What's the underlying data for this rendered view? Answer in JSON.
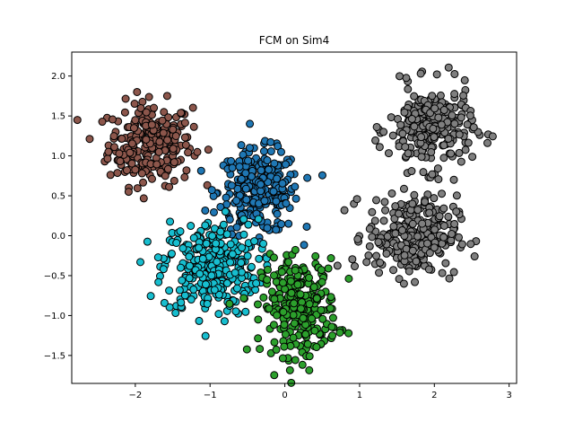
{
  "chart_data": {
    "type": "scatter",
    "title": "FCM on Sim4",
    "xlabel": "",
    "ylabel": "",
    "xlim": [
      -2.85,
      3.1
    ],
    "ylim": [
      -1.85,
      2.3
    ],
    "xticks": [
      -2,
      -1,
      0,
      1,
      2,
      3
    ],
    "yticks": [
      -1.5,
      -1.0,
      -0.5,
      0.0,
      0.5,
      1.0,
      1.5,
      2.0
    ],
    "xtick_labels": [
      "−2",
      "−1",
      "0",
      "1",
      "2",
      "3"
    ],
    "ytick_labels": [
      "−1.5",
      "−1.0",
      "−0.5",
      "0.0",
      "0.5",
      "1.0",
      "1.5",
      "2.0"
    ],
    "grid": false,
    "legend": "none",
    "marker_edge_color": "#000000",
    "series": [
      {
        "color": "#8c564b",
        "center": [
          -1.8,
          1.15
        ],
        "spread": [
          0.28,
          0.26
        ],
        "count": 260
      },
      {
        "color": "#1f77b4",
        "center": [
          -0.35,
          0.55
        ],
        "spread": [
          0.27,
          0.26
        ],
        "count": 290
      },
      {
        "color": "#17becf",
        "center": [
          -1.0,
          -0.4
        ],
        "spread": [
          0.32,
          0.3
        ],
        "count": 290
      },
      {
        "color": "#2ca02c",
        "center": [
          0.2,
          -0.9
        ],
        "spread": [
          0.25,
          0.3
        ],
        "count": 290
      },
      {
        "color": "#7f7f7f",
        "center": [
          1.95,
          1.35
        ],
        "spread": [
          0.28,
          0.26
        ],
        "count": 260
      },
      {
        "color": "#7f7f7f",
        "center": [
          1.7,
          0.0
        ],
        "spread": [
          0.3,
          0.25
        ],
        "count": 280
      }
    ]
  }
}
